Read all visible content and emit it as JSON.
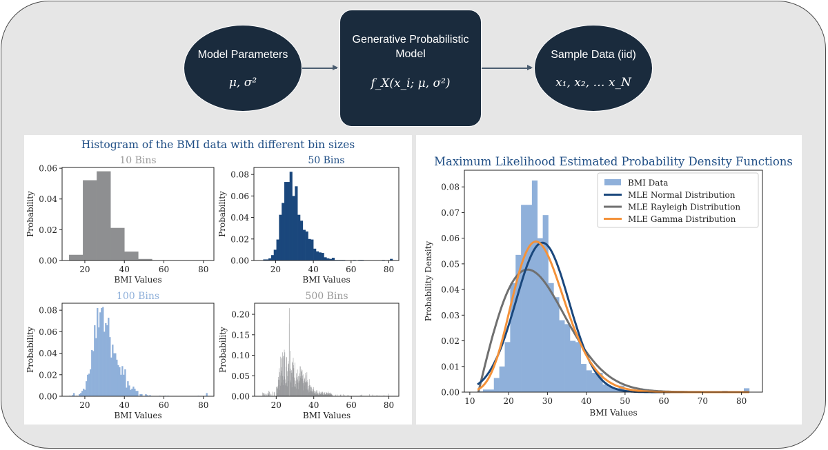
{
  "diagram": {
    "nodes": [
      {
        "id": "params",
        "label": "Model Parameters",
        "math": "μ, σ²"
      },
      {
        "id": "model",
        "label": "Generative Probabilistic Model",
        "label_lines": [
          "Generative Probabilistic",
          "Model"
        ],
        "math": "f_X(x_i; μ, σ²)"
      },
      {
        "id": "samples",
        "label": "Sample Data (iid)",
        "math": "x₁, x₂, … x_N"
      }
    ],
    "edges": [
      {
        "from": "params",
        "to": "model"
      },
      {
        "from": "model",
        "to": "samples"
      }
    ],
    "colors": {
      "node_fill": "#1a2b3d",
      "background": "#e6e6e6",
      "arrow": "#4b5d70"
    }
  },
  "left_panel": {
    "title": "Histogram of the BMI data with different bin sizes",
    "title_color": "#1f4e85"
  },
  "right_panel": {
    "title": "Maximum Likelihood Estimated Probability Density Functions",
    "title_color": "#1f4e85"
  },
  "chart_data": [
    {
      "type": "bar",
      "title": "10 Bins",
      "title_color": "#999999",
      "bar_color": "#8e8f91",
      "xlabel": "BMI Values",
      "ylabel": "Probability",
      "xlim": [
        8.5,
        85.3
      ],
      "ylim": [
        0,
        0.0605
      ],
      "xticks": [
        20,
        40,
        60,
        80
      ],
      "yticks": [
        0.0,
        0.02,
        0.04,
        0.06
      ],
      "ytick_labels": [
        "0.00",
        "0.02",
        "0.04",
        "0.06"
      ],
      "bin_edges": [
        12.0,
        19.0,
        26.0,
        33.0,
        40.0,
        47.0,
        54.0,
        61.0,
        68.0,
        75.0,
        82.0
      ],
      "values": [
        0.0037,
        0.0522,
        0.058,
        0.0212,
        0.0058,
        0.001,
        0.0002,
        0.0002,
        0.0001,
        0.0001
      ]
    },
    {
      "type": "bar",
      "title": "50 Bins",
      "title_color": "#1f4e85",
      "bar_color": "#1a477c",
      "xlabel": "BMI Values",
      "ylabel": "Probability",
      "xlim": [
        8.5,
        85.3
      ],
      "ylim": [
        0,
        0.0865
      ],
      "xticks": [
        20,
        40,
        60,
        80
      ],
      "yticks": [
        0.0,
        0.02,
        0.04,
        0.06,
        0.08
      ],
      "ytick_labels": [
        "0.00",
        "0.02",
        "0.04",
        "0.06",
        "0.08"
      ],
      "bin_start": 12.0,
      "bin_width": 1.4,
      "values": [
        0.0003,
        0.001,
        0.001,
        0.002,
        0.005,
        0.01,
        0.0195,
        0.0425,
        0.0535,
        0.073,
        0.073,
        0.0825,
        0.06,
        0.069,
        0.0425,
        0.037,
        0.0285,
        0.027,
        0.02,
        0.0195,
        0.011,
        0.0085,
        0.0075,
        0.007,
        0.003,
        0.002,
        0.0015,
        0.0025,
        0.0005,
        0.0005,
        0.0005,
        0.0005,
        0.0,
        0.0,
        0.0,
        0.0005,
        0.0,
        0.0005,
        0.0005,
        0.0,
        0.0,
        0.0,
        0.0,
        0.0,
        0.0,
        0.0,
        0.0005,
        0.0,
        0.0,
        0.0015
      ]
    },
    {
      "type": "bar",
      "title": "100 Bins",
      "title_color": "#8fb0da",
      "bar_color": "#8fb0da",
      "xlabel": "BMI Values",
      "ylabel": "Probability",
      "xlim": [
        8.5,
        85.3
      ],
      "ylim": [
        0,
        0.0865
      ],
      "xticks": [
        20,
        40,
        60,
        80
      ],
      "yticks": [
        0.0,
        0.02,
        0.04,
        0.06,
        0.08
      ],
      "ytick_labels": [
        "0.00",
        "0.02",
        "0.04",
        "0.06",
        "0.08"
      ],
      "bin_start": 12.0,
      "bin_width": 0.7,
      "values": [
        0.0005,
        0.0,
        0.001,
        0.003,
        0.0,
        0.0005,
        0.0,
        0.002,
        0.003,
        0.005,
        0.007,
        0.006,
        0.014,
        0.02,
        0.021,
        0.025,
        0.043,
        0.042,
        0.066,
        0.054,
        0.082,
        0.064,
        0.078,
        0.082,
        0.083,
        0.06,
        0.068,
        0.066,
        0.073,
        0.055,
        0.036,
        0.048,
        0.04,
        0.04,
        0.034,
        0.029,
        0.027,
        0.02,
        0.028,
        0.02,
        0.025,
        0.008,
        0.014,
        0.01,
        0.006,
        0.007,
        0.009,
        0.007,
        0.005,
        0.005,
        0.0,
        0.002,
        0.002,
        0.0,
        0.0,
        0.002,
        0.001,
        0.0005,
        0.001,
        0.0,
        0.0,
        0.0,
        0.0,
        0.0,
        0.0,
        0.0005,
        0.0,
        0.0,
        0.0,
        0.0005,
        0.0,
        0.0005,
        0.0,
        0.0,
        0.0,
        0.0,
        0.0,
        0.0,
        0.0,
        0.0,
        0.0,
        0.0,
        0.0,
        0.0,
        0.0,
        0.0,
        0.0,
        0.0,
        0.0,
        0.0,
        0.0,
        0.0,
        0.0,
        0.0005,
        0.0,
        0.0,
        0.0,
        0.0,
        0.0,
        0.003
      ]
    },
    {
      "type": "bar",
      "title": "500 Bins",
      "title_color": "#999999",
      "bar_color": "#8e8f91",
      "xlabel": "BMI Values",
      "ylabel": "Probability",
      "xlim": [
        8.5,
        85.3
      ],
      "ylim": [
        0,
        0.227
      ],
      "xticks": [
        20,
        40,
        60,
        80
      ],
      "yticks": [
        0.0,
        0.05,
        0.1,
        0.15,
        0.2
      ],
      "ytick_labels": [
        "0.00",
        "0.05",
        "0.10",
        "0.15",
        "0.20"
      ],
      "note": "approximate envelope of 500 thin bars between BMI 12 and 82; peak ≈0.215 near BMI 27",
      "peaks": [
        [
          12.5,
          0.01
        ],
        [
          14,
          0.01
        ],
        [
          16.5,
          0.015
        ],
        [
          18,
          0.02
        ],
        [
          19,
          0.025
        ],
        [
          20,
          0.03
        ],
        [
          21,
          0.05
        ],
        [
          22,
          0.09
        ],
        [
          23,
          0.11
        ],
        [
          24,
          0.13
        ],
        [
          25,
          0.12
        ],
        [
          26,
          0.1
        ],
        [
          27,
          0.215
        ],
        [
          28,
          0.11
        ],
        [
          29,
          0.1
        ],
        [
          30,
          0.09
        ],
        [
          31,
          0.08
        ],
        [
          32,
          0.05
        ],
        [
          33,
          0.085
        ],
        [
          34,
          0.06
        ],
        [
          35,
          0.05
        ],
        [
          36,
          0.07
        ],
        [
          37,
          0.04
        ],
        [
          38,
          0.045
        ],
        [
          39,
          0.02
        ],
        [
          40,
          0.025
        ],
        [
          42,
          0.015
        ],
        [
          44,
          0.012
        ],
        [
          46,
          0.01
        ],
        [
          48,
          0.012
        ],
        [
          50,
          0.008
        ],
        [
          52,
          0.008
        ],
        [
          56,
          0.005
        ],
        [
          60,
          0.008
        ],
        [
          63,
          0.005
        ],
        [
          74,
          0.005
        ],
        [
          81.5,
          0.008
        ]
      ]
    },
    {
      "type": "bar+line",
      "title": "Maximum Likelihood Estimated Probability Density Functions",
      "xlabel": "BMI Values",
      "ylabel": "Probability Density",
      "xlim": [
        8.6,
        85.4
      ],
      "ylim": [
        0,
        0.0865
      ],
      "xticks": [
        10,
        20,
        30,
        40,
        50,
        60,
        70,
        80
      ],
      "yticks": [
        0.0,
        0.01,
        0.02,
        0.03,
        0.04,
        0.05,
        0.06,
        0.07,
        0.08
      ],
      "ytick_labels": [
        "0.00",
        "0.01",
        "0.02",
        "0.03",
        "0.04",
        "0.05",
        "0.06",
        "0.07",
        "0.08"
      ],
      "histogram": {
        "name": "BMI Data",
        "color": "#8fb0da",
        "bin_start": 12.0,
        "bin_width": 1.4,
        "values": [
          0.0003,
          0.001,
          0.001,
          0.0055,
          0.01,
          0.0195,
          0.0425,
          0.0535,
          0.073,
          0.073,
          0.0825,
          0.06,
          0.069,
          0.0425,
          0.037,
          0.028,
          0.0265,
          0.02,
          0.0195,
          0.011,
          0.0085,
          0.0075,
          0.0075,
          0.003,
          0.002,
          0.0015,
          0.0025,
          0.0005,
          0.0005,
          0.0005,
          0.0005,
          0.0,
          0.0,
          0.0,
          0.0005,
          0.0,
          0.0005,
          0.0005,
          0.0,
          0.0,
          0.0,
          0.0,
          0.0,
          0.0,
          0.0,
          0.0005,
          0.0,
          0.0,
          0.0,
          0.0015
        ]
      },
      "series": [
        {
          "name": "MLE Normal Distribution",
          "color": "#1a477c",
          "dist": "normal",
          "params": {
            "mu": 28.7,
            "sigma": 6.85
          },
          "x_range": [
            12,
            82
          ]
        },
        {
          "name": "MLE Rayleigh Distribution",
          "color": "#707070",
          "dist": "rayleigh",
          "params": {
            "loc": 12.2,
            "scale": 12.7
          },
          "x_range": [
            12.2,
            82
          ]
        },
        {
          "name": "MLE Gamma Distribution",
          "color": "#f4923a",
          "dist": "gamma",
          "params": {
            "shape": 17.0,
            "scale": 1.69
          },
          "x_range": [
            12,
            82
          ]
        }
      ],
      "legend": {
        "position": "upper right",
        "entries": [
          "BMI Data",
          "MLE Normal Distribution",
          "MLE Rayleigh Distribution",
          "MLE Gamma Distribution"
        ]
      }
    }
  ]
}
